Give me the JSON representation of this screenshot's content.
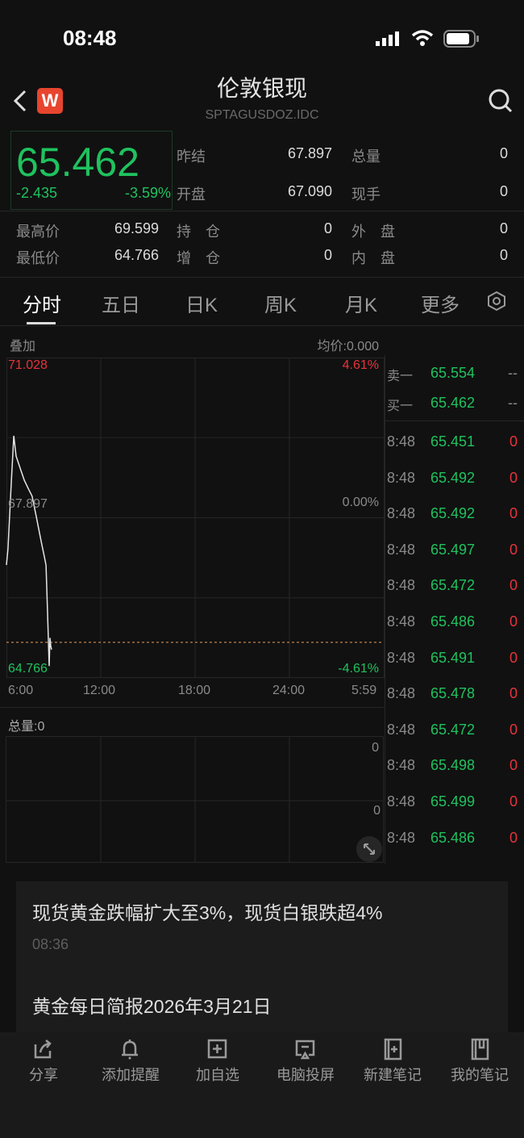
{
  "status_bar": {
    "time": "08:48"
  },
  "header": {
    "title": "伦敦银现",
    "code": "SPTAGUSDOZ.IDC",
    "logo_letter": "W"
  },
  "quote": {
    "price": "65.462",
    "change": "-2.435",
    "change_pct": "-3.59%",
    "fields": [
      {
        "label": "昨结",
        "value": "67.897"
      },
      {
        "label": "总量",
        "value": "0"
      },
      {
        "label": "开盘",
        "value": "67.090"
      },
      {
        "label": "现手",
        "value": "0"
      },
      {
        "label": "最高价",
        "value": "69.599"
      },
      {
        "label": "持　仓",
        "value": "0"
      },
      {
        "label": "外　盘",
        "value": "0"
      },
      {
        "label": "最低价",
        "value": "64.766"
      },
      {
        "label": "增　仓",
        "value": "0"
      },
      {
        "label": "内　盘",
        "value": "0"
      }
    ]
  },
  "tabs": [
    {
      "label": "分时",
      "active": true
    },
    {
      "label": "五日"
    },
    {
      "label": "日K"
    },
    {
      "label": "周K"
    },
    {
      "label": "月K"
    },
    {
      "label": "更多"
    }
  ],
  "chart": {
    "overlay_label": "叠加",
    "avg_price": "均价:0.000",
    "y_max": "71.028",
    "y_mid": "67.897",
    "y_min": "64.766",
    "pct_max": "4.61%",
    "pct_mid": "0.00%",
    "pct_min": "-4.61%",
    "x_ticks": [
      "6:00",
      "12:00",
      "18:00",
      "24:00",
      "5:59"
    ],
    "colors": {
      "line": "#e6e6e6",
      "avg_dashed": "#e8a05a",
      "up": "#e8333c",
      "down": "#1fc25e"
    },
    "price_range": [
      64.766,
      71.028
    ],
    "series_minutes_from_6am": [
      0,
      6,
      18,
      28,
      37,
      52,
      68,
      83,
      98,
      114,
      123,
      135,
      145,
      151,
      157,
      163,
      166,
      169,
      172
    ],
    "series_prices": [
      66.975,
      67.29,
      68.55,
      69.5,
      69.1,
      68.87,
      68.63,
      68.47,
      68.32,
      67.92,
      67.68,
      67.37,
      67.13,
      66.97,
      66.03,
      65.0,
      65.55,
      65.4,
      65.32
    ],
    "current_price_line": 65.462,
    "volume_label": "总量:0",
    "vol_ticks": [
      "0",
      "0"
    ]
  },
  "order_book": [
    {
      "label": "卖一",
      "price": "65.554",
      "vol": "--"
    },
    {
      "label": "买一",
      "price": "65.462",
      "vol": "--"
    }
  ],
  "ticks": [
    {
      "t": "8:48",
      "p": "65.451",
      "v": "0"
    },
    {
      "t": "8:48",
      "p": "65.492",
      "v": "0"
    },
    {
      "t": "8:48",
      "p": "65.492",
      "v": "0"
    },
    {
      "t": "8:48",
      "p": "65.497",
      "v": "0"
    },
    {
      "t": "8:48",
      "p": "65.472",
      "v": "0"
    },
    {
      "t": "8:48",
      "p": "65.486",
      "v": "0"
    },
    {
      "t": "8:48",
      "p": "65.491",
      "v": "0"
    },
    {
      "t": "8:48",
      "p": "65.478",
      "v": "0"
    },
    {
      "t": "8:48",
      "p": "65.472",
      "v": "0"
    },
    {
      "t": "8:48",
      "p": "65.498",
      "v": "0"
    },
    {
      "t": "8:48",
      "p": "65.499",
      "v": "0"
    },
    {
      "t": "8:48",
      "p": "65.486",
      "v": "0"
    }
  ],
  "news": [
    {
      "title": "现货黄金跌幅扩大至3%，现货白银跌超4%",
      "time": "08:36"
    },
    {
      "title": "黄金每日简报2026年3月21日"
    }
  ],
  "toolbar": [
    {
      "label": "分享",
      "icon": "share-icon"
    },
    {
      "label": "添加提醒",
      "icon": "bell-icon"
    },
    {
      "label": "加自选",
      "icon": "add-watchlist-icon"
    },
    {
      "label": "电脑投屏",
      "icon": "cast-icon"
    },
    {
      "label": "新建笔记",
      "icon": "new-note-icon"
    },
    {
      "label": "我的笔记",
      "icon": "notes-icon"
    }
  ]
}
